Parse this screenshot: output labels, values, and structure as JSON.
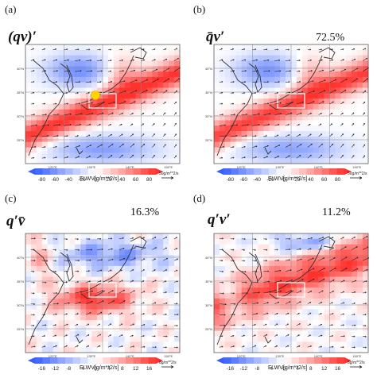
{
  "panels": [
    {
      "label": "(a)",
      "formula": "(qv)′",
      "percent": "",
      "ticks": [
        "-80",
        "-60",
        "-40",
        "-20",
        "0",
        "20",
        "40",
        "60",
        "80"
      ],
      "range": [
        -80,
        80
      ],
      "cb_title": "FLWV[g/m**2/s]",
      "ref_vector": "50g/m**2/s",
      "yellow_dot": true
    },
    {
      "label": "(b)",
      "formula": "q̄v′",
      "percent": "72.5%",
      "ticks": [
        "-80",
        "-60",
        "-40",
        "-20",
        "0",
        "20",
        "40",
        "60",
        "80"
      ],
      "range": [
        -80,
        80
      ],
      "cb_title": "FLWV[g/m**2/s]",
      "ref_vector": "50g/m**2/s",
      "yellow_dot": false
    },
    {
      "label": "(c)",
      "formula": "q′v̄",
      "percent": "16.3%",
      "ticks": [
        "-16",
        "-12",
        "-8",
        "-4",
        "0",
        "4",
        "8",
        "12",
        "16"
      ],
      "range": [
        -16,
        16
      ],
      "cb_title": "FLWV[g/m**2/s]",
      "ref_vector": "8g/m**2/s",
      "yellow_dot": false
    },
    {
      "label": "(d)",
      "formula": "q′v′",
      "percent": "11.2%",
      "ticks": [
        "-16",
        "-12",
        "-8",
        "-4",
        "0",
        "4",
        "8",
        "12",
        "16"
      ],
      "range": [
        -16,
        16
      ],
      "cb_title": "FLWV[g/m**2/s]",
      "ref_vector": "8g/m**2/s",
      "yellow_dot": false
    }
  ],
  "lat_labels": [
    "40°N",
    "35°N",
    "30°N",
    "25°N"
  ],
  "lon_labels": [
    "120°E",
    "130°E",
    "140°E",
    "150°E"
  ],
  "colors": {
    "negative": "#3a55e6",
    "positive": "#e6282d",
    "box": "#ffffff",
    "dot": "#ffd400"
  },
  "chart_data": {
    "type": "heatmap",
    "subplots": 4,
    "variable": "FLWV[g/m**2/s]",
    "panel_percentages": {
      "b": 72.5,
      "c": 16.3,
      "d": 11.2
    },
    "colorbar_ranges": {
      "a": [
        -80,
        80
      ],
      "b": [
        -80,
        80
      ],
      "c": [
        -16,
        16
      ],
      "d": [
        -16,
        16
      ]
    }
  }
}
